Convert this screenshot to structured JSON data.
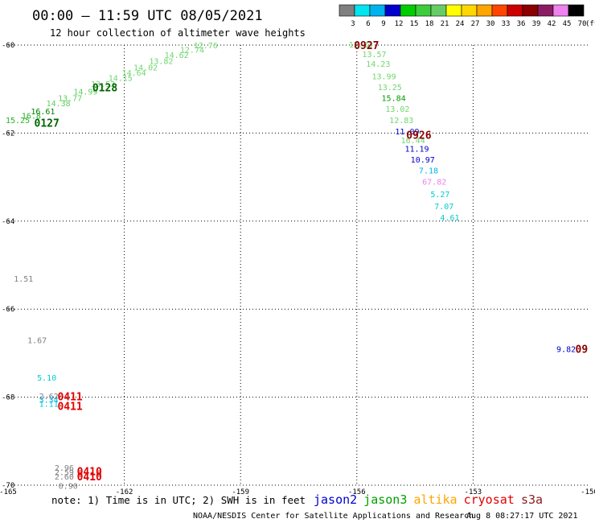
{
  "header": {
    "title": "00:00 – 11:59 UTC 08/05/2021",
    "subtitle": "12 hour collection of altimeter wave heights"
  },
  "colorbar": {
    "labels": [
      "3",
      "6",
      "9",
      "12",
      "15",
      "18",
      "21",
      "24",
      "27",
      "30",
      "33",
      "36",
      "39",
      "42",
      "45",
      "70"
    ],
    "unit": "(ft)",
    "colors": [
      "#7f7f7f",
      "#00e5ee",
      "#00b2ee",
      "#0000cd",
      "#00cd00",
      "#3ccd3c",
      "#66cd66",
      "#ffff00",
      "#ffd700",
      "#ffa500",
      "#ff4500",
      "#cd0000",
      "#8b0000",
      "#8b1c62",
      "#ee82ee",
      "#000000"
    ]
  },
  "footer": {
    "note": "note: 1) Time is in UTC; 2) SWH is in feet",
    "satellites": [
      {
        "name": "jason2",
        "color": "#0000cd"
      },
      {
        "name": "jason3",
        "color": "#00a000"
      },
      {
        "name": "altika",
        "color": "#ffa500"
      },
      {
        "name": "cryosat",
        "color": "#e00000"
      },
      {
        "name": "s3a",
        "color": "#8b1c1c"
      }
    ],
    "credit": "NOAA/NESDIS Center for Satellite Applications and Research",
    "timestamp": "Aug  8 08:27:17 UTC 2021"
  },
  "chart_data": {
    "type": "scatter",
    "xlim": [
      -165,
      -150
    ],
    "ylim": [
      -70,
      -60
    ],
    "x_ticks": [
      "-165",
      "-162",
      "-159",
      "-156",
      "-153",
      "-150"
    ],
    "y_ticks": [
      "-60",
      "-62",
      "-64",
      "-66",
      "-68",
      "-70"
    ],
    "gridlines": true,
    "points": [
      {
        "lon": -164.75,
        "lat": -61.7,
        "swh": "15.25",
        "color": "#2bb32b"
      },
      {
        "lon": -164.4,
        "lat": -61.6,
        "swh": "16.8",
        "color": "#2bb32b"
      },
      {
        "lon": -164.1,
        "lat": -61.5,
        "swh": "16.61",
        "color": "#007f00"
      },
      {
        "lon": -163.7,
        "lat": -61.32,
        "swh": "14.38",
        "color": "#5fcf5f"
      },
      {
        "lon": -163.4,
        "lat": -61.2,
        "swh": "13.77",
        "color": "#5fcf5f"
      },
      {
        "lon": -163.0,
        "lat": -61.05,
        "swh": "14.99",
        "color": "#5fcf5f"
      },
      {
        "lon": -162.55,
        "lat": -60.88,
        "swh": "13.53",
        "color": "#6fd76f"
      },
      {
        "lon": -162.1,
        "lat": -60.74,
        "swh": "14.15",
        "color": "#6fd76f"
      },
      {
        "lon": -161.75,
        "lat": -60.62,
        "swh": "14.64",
        "color": "#6fd76f"
      },
      {
        "lon": -161.45,
        "lat": -60.5,
        "swh": "14.02",
        "color": "#6fd76f"
      },
      {
        "lon": -161.05,
        "lat": -60.36,
        "swh": "13.82",
        "color": "#6fd76f"
      },
      {
        "lon": -160.65,
        "lat": -60.22,
        "swh": "14.62",
        "color": "#6fd76f"
      },
      {
        "lon": -160.25,
        "lat": -60.1,
        "swh": "12.74",
        "color": "#6fd76f"
      },
      {
        "lon": -159.9,
        "lat": -60.0,
        "swh": "12.76",
        "color": "#6fd76f"
      },
      {
        "lon": -155.9,
        "lat": -59.98,
        "swh": "12.83",
        "color": "#6fd76f"
      },
      {
        "lon": -155.55,
        "lat": -60.2,
        "swh": "13.57",
        "color": "#6fd76f"
      },
      {
        "lon": -155.45,
        "lat": -60.42,
        "swh": "14.23",
        "color": "#6fd76f"
      },
      {
        "lon": -155.3,
        "lat": -60.7,
        "swh": "13.99",
        "color": "#6fd76f"
      },
      {
        "lon": -155.15,
        "lat": -60.95,
        "swh": "13.25",
        "color": "#6fd76f"
      },
      {
        "lon": -155.05,
        "lat": -61.2,
        "swh": "15.84",
        "color": "#00a000"
      },
      {
        "lon": -154.95,
        "lat": -61.44,
        "swh": "13.02",
        "color": "#6fd76f"
      },
      {
        "lon": -154.85,
        "lat": -61.7,
        "swh": "12.83",
        "color": "#6fd76f"
      },
      {
        "lon": -154.7,
        "lat": -61.96,
        "swh": "11.09",
        "color": "#0000cd"
      },
      {
        "lon": -154.55,
        "lat": -62.16,
        "swh": "16.44",
        "color": "#6fd76f"
      },
      {
        "lon": -154.45,
        "lat": -62.35,
        "swh": "11.19",
        "color": "#0000cd"
      },
      {
        "lon": -154.3,
        "lat": -62.6,
        "swh": "10.97",
        "color": "#0000cd"
      },
      {
        "lon": -154.15,
        "lat": -62.84,
        "swh": "7.18",
        "color": "#00b2ee"
      },
      {
        "lon": -154.0,
        "lat": -63.1,
        "swh": "67.82",
        "color": "#ee82ee"
      },
      {
        "lon": -153.85,
        "lat": -63.38,
        "swh": "5.27",
        "color": "#00cdcd"
      },
      {
        "lon": -153.75,
        "lat": -63.66,
        "swh": "7.07",
        "color": "#00cdcd"
      },
      {
        "lon": -153.6,
        "lat": -63.91,
        "swh": "4.61",
        "color": "#00cdcd"
      },
      {
        "lon": -164.6,
        "lat": -65.3,
        "swh": "1.51",
        "color": "#7f7f7f"
      },
      {
        "lon": -164.25,
        "lat": -66.7,
        "swh": "1.67",
        "color": "#7f7f7f"
      },
      {
        "lon": -164.0,
        "lat": -67.55,
        "swh": "5.10",
        "color": "#00cdcd"
      },
      {
        "lon": -163.95,
        "lat": -67.97,
        "swh": "2.62",
        "color": "#7f7f7f"
      },
      {
        "lon": -163.95,
        "lat": -68.05,
        "swh": "3.34",
        "color": "#00b2ee"
      },
      {
        "lon": -163.95,
        "lat": -68.14,
        "swh": "1.11",
        "color": "#00cdcd"
      },
      {
        "lon": -163.55,
        "lat": -69.6,
        "swh": "2.96",
        "color": "#7f7f7f"
      },
      {
        "lon": -163.55,
        "lat": -69.7,
        "swh": "2.59",
        "color": "#7f7f7f"
      },
      {
        "lon": -163.55,
        "lat": -69.8,
        "swh": "2.60",
        "color": "#7f7f7f"
      },
      {
        "lon": -163.45,
        "lat": -70.01,
        "swh": "0.90",
        "color": "#7f7f7f"
      },
      {
        "lon": -150.6,
        "lat": -66.9,
        "swh": "9.82",
        "color": "#0000cd"
      }
    ],
    "pass_labels": [
      {
        "lon": -164.0,
        "lat": -61.76,
        "label": "0127",
        "color": "#006400"
      },
      {
        "lon": -162.5,
        "lat": -60.96,
        "label": "0128",
        "color": "#006400"
      },
      {
        "lon": -155.75,
        "lat": -60.0,
        "label": "0927",
        "color": "#8b0000"
      },
      {
        "lon": -154.4,
        "lat": -62.04,
        "label": "0926",
        "color": "#8b0000"
      },
      {
        "lon": -163.4,
        "lat": -67.98,
        "label": "0411",
        "color": "#e00000"
      },
      {
        "lon": -163.4,
        "lat": -68.2,
        "label": "0411",
        "color": "#e00000"
      },
      {
        "lon": -162.9,
        "lat": -69.68,
        "label": "0410",
        "color": "#e00000"
      },
      {
        "lon": -162.9,
        "lat": -69.8,
        "label": "0410",
        "color": "#e00000"
      },
      {
        "lon": -150.2,
        "lat": -66.9,
        "label": "09",
        "color": "#8b0000"
      }
    ]
  }
}
